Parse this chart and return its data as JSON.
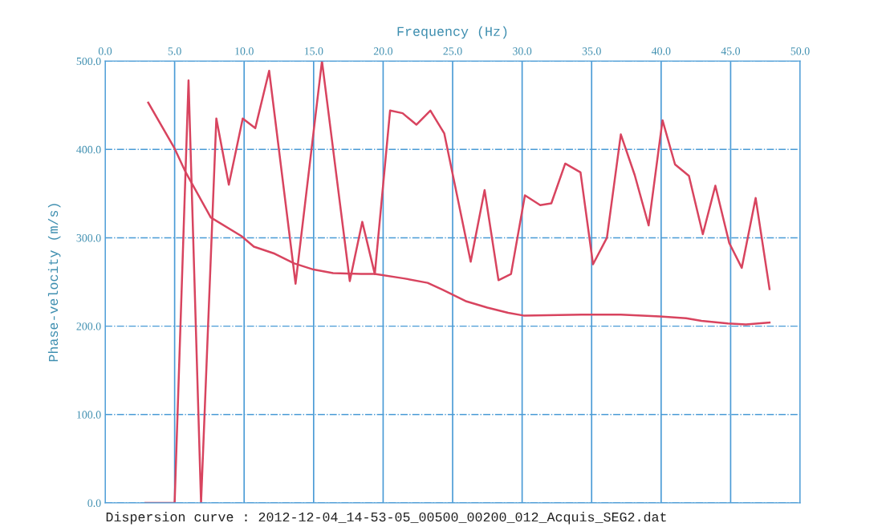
{
  "chart_data": {
    "type": "line",
    "xlabel": "Frequency (Hz)",
    "ylabel": "Phase-velocity (m/s)",
    "xlim": [
      0,
      50
    ],
    "ylim": [
      0,
      500
    ],
    "xticks": [
      {
        "value": 0,
        "label": "0.0"
      },
      {
        "value": 5,
        "label": "5.0"
      },
      {
        "value": 10,
        "label": "10.0"
      },
      {
        "value": 15,
        "label": "15.0"
      },
      {
        "value": 20,
        "label": "20.0"
      },
      {
        "value": 25,
        "label": "25.0"
      },
      {
        "value": 30,
        "label": "30.0"
      },
      {
        "value": 35,
        "label": "35.0"
      },
      {
        "value": 40,
        "label": "40.0"
      },
      {
        "value": 45,
        "label": "45.0"
      },
      {
        "value": 50,
        "label": "50.0"
      }
    ],
    "yticks": [
      {
        "value": 0,
        "label": "0.0"
      },
      {
        "value": 100,
        "label": "100.0"
      },
      {
        "value": 200,
        "label": "200.0"
      },
      {
        "value": 300,
        "label": "300.0"
      },
      {
        "value": 400,
        "label": "400.0"
      },
      {
        "value": 500,
        "label": "500.0"
      }
    ],
    "grid": true,
    "marker": "none",
    "line_style": "solid",
    "series": [
      {
        "color": "#d8445f",
        "x": [
          2.9,
          5.0,
          6.0,
          6.9,
          8.0,
          8.9,
          9.9,
          10.8,
          11.8,
          13.7,
          15.6,
          17.6,
          18.5,
          19.4,
          20.5,
          21.4,
          22.4,
          23.4,
          24.4,
          26.3,
          27.3,
          28.3,
          29.2,
          30.2,
          31.3,
          32.1,
          33.1,
          34.2,
          35.1,
          36.1,
          37.1,
          38.1,
          39.1,
          40.1,
          41.0,
          42.0,
          43.0,
          43.9,
          44.9,
          45.8,
          46.8,
          47.8
        ],
        "values": [
          0,
          0,
          478,
          0,
          435,
          360,
          435,
          424,
          489,
          248,
          500,
          251,
          318,
          259,
          444,
          441,
          428,
          444,
          418,
          273,
          354,
          252,
          259,
          348,
          337,
          339,
          384,
          374,
          270,
          300,
          417,
          371,
          314,
          433,
          383,
          370,
          304,
          359,
          294,
          266,
          345,
          242
        ]
      },
      {
        "color": "#d8445f",
        "x": [
          3.1,
          5.0,
          5.8,
          7.6,
          9.8,
          10.7,
          12.2,
          13.6,
          15.0,
          16.4,
          18.4,
          19.4,
          21.5,
          23.2,
          24.3,
          26.0,
          27.5,
          29.0,
          30.1,
          34.3,
          37.1,
          39.9,
          41.8,
          42.9,
          44.8,
          46.1,
          47.8
        ],
        "values": [
          453,
          401,
          374,
          323,
          302,
          290,
          282,
          271,
          264,
          260,
          259,
          259,
          254,
          249,
          241,
          228,
          221,
          215,
          212,
          213,
          213,
          211,
          209,
          206,
          203,
          202,
          204
        ]
      }
    ],
    "annotations": [
      "Dispersion curve : 2012-12-04_14-53-05_00500_00200_012_Acquis_SEG2.dat"
    ]
  }
}
